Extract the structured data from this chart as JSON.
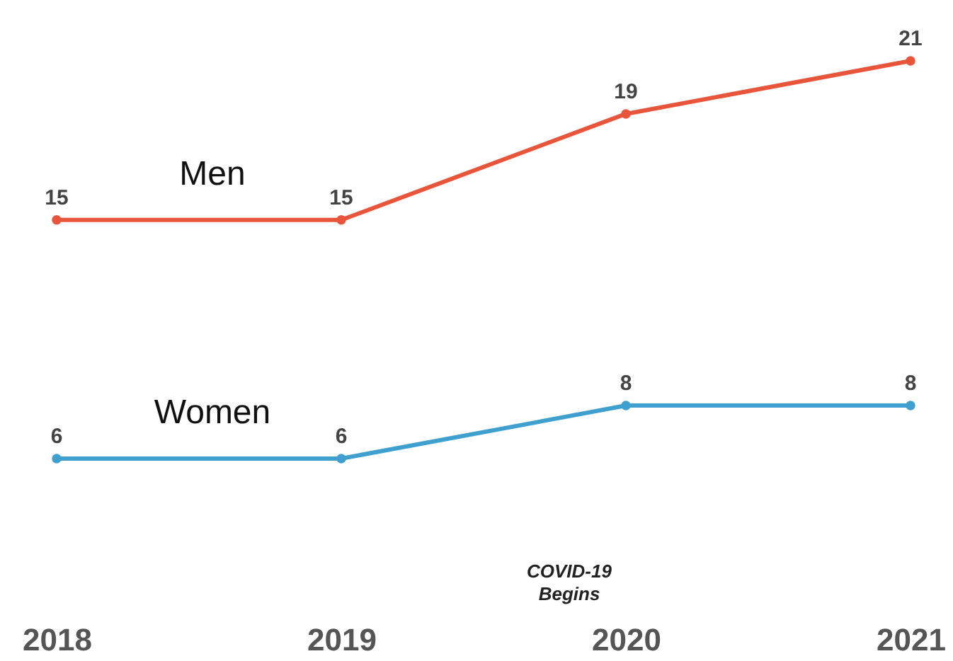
{
  "chart_data": {
    "type": "line",
    "categories": [
      "2018",
      "2019",
      "2020",
      "2021"
    ],
    "series": [
      {
        "name": "Men",
        "color": "#e8553a",
        "values": [
          15,
          15,
          19,
          21
        ]
      },
      {
        "name": "Women",
        "color": "#3fa0d0",
        "values": [
          6,
          6,
          8,
          8
        ]
      }
    ],
    "data_labels": true,
    "marker": "circle",
    "line_style": "solid",
    "legend": false,
    "tick_labels": "x",
    "annotations": [
      "COVID-19\nBegins"
    ]
  }
}
